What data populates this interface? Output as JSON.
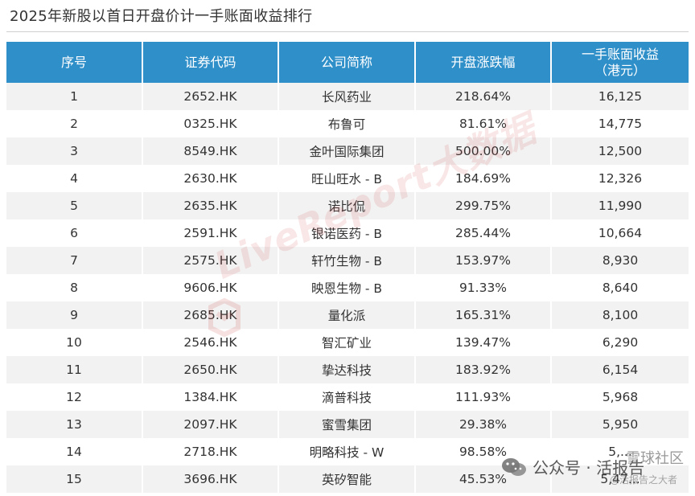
{
  "title": "2025年新股以首日开盘价计一手账面收益排行",
  "table": {
    "headers": {
      "seq": "序号",
      "code": "证券代码",
      "name": "公司简称",
      "change": "开盘涨跌幅",
      "gain_line1": "一手账面收益",
      "gain_line2": "（港元）"
    },
    "rows": [
      {
        "seq": "1",
        "code": "2652.HK",
        "name": "长风药业",
        "change": "218.64%",
        "gain": "16,125"
      },
      {
        "seq": "2",
        "code": "0325.HK",
        "name": "布鲁可",
        "change": "81.61%",
        "gain": "14,775"
      },
      {
        "seq": "3",
        "code": "8549.HK",
        "name": "金叶国际集团",
        "change": "500.00%",
        "gain": "12,500"
      },
      {
        "seq": "4",
        "code": "2630.HK",
        "name": "旺山旺水 - B",
        "change": "184.69%",
        "gain": "12,326"
      },
      {
        "seq": "5",
        "code": "2635.HK",
        "name": "诺比侃",
        "change": "299.75%",
        "gain": "11,990"
      },
      {
        "seq": "6",
        "code": "2591.HK",
        "name": "银诺医药 - B",
        "change": "285.44%",
        "gain": "10,664"
      },
      {
        "seq": "7",
        "code": "2575.HK",
        "name": "轩竹生物 - B",
        "change": "153.97%",
        "gain": "8,930"
      },
      {
        "seq": "8",
        "code": "9606.HK",
        "name": "映恩生物 - B",
        "change": "91.33%",
        "gain": "8,640"
      },
      {
        "seq": "9",
        "code": "2685.HK",
        "name": "量化派",
        "change": "165.31%",
        "gain": "8,100"
      },
      {
        "seq": "10",
        "code": "2546.HK",
        "name": "智汇矿业",
        "change": "139.47%",
        "gain": "6,290"
      },
      {
        "seq": "11",
        "code": "2650.HK",
        "name": "挚达科技",
        "change": "183.92%",
        "gain": "6,154"
      },
      {
        "seq": "12",
        "code": "1384.HK",
        "name": "滴普科技",
        "change": "111.93%",
        "gain": "5,968"
      },
      {
        "seq": "13",
        "code": "2097.HK",
        "name": "蜜雪集团",
        "change": "29.38%",
        "gain": "5,950"
      },
      {
        "seq": "14",
        "code": "2718.HK",
        "name": "明略科技 - W",
        "change": "98.58%",
        "gain": "5,..."
      },
      {
        "seq": "15",
        "code": "3696.HK",
        "name": "英矽智能",
        "change": "45.53%",
        "gain": "5,47..."
      }
    ]
  },
  "watermark": {
    "text": "LiveReport大数据"
  },
  "overlay": {
    "wechat_label": "公众号 · 活报告",
    "corner_text": "雪球社区",
    "corner_sub": "@活报告之大者"
  },
  "colors": {
    "header_bg": "#2f8fc9",
    "stripe": "#f2f2f2",
    "watermark": "#cd3c3c"
  }
}
